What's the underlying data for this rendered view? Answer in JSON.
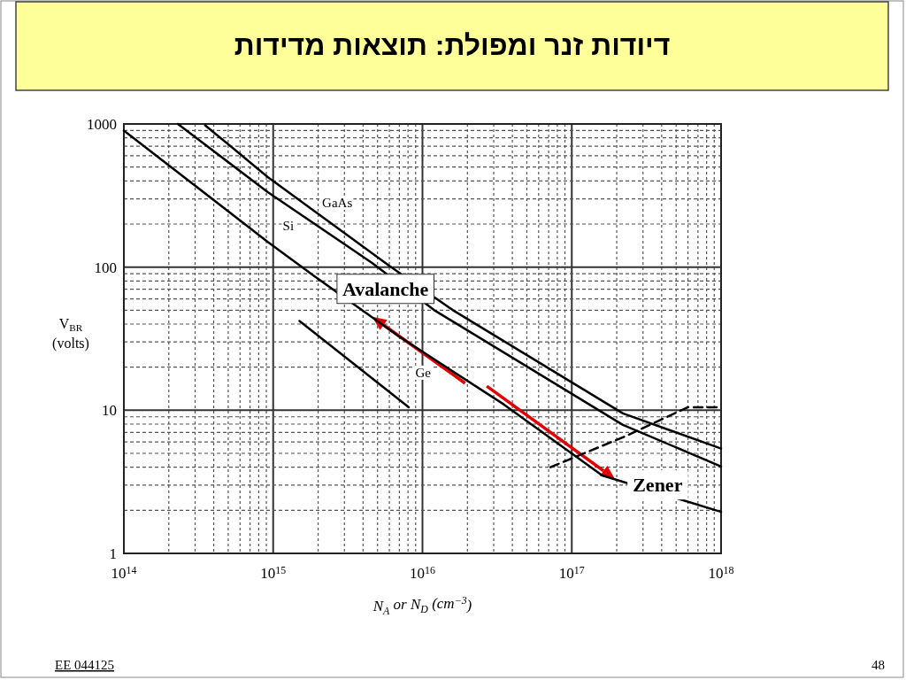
{
  "chart_data": {
    "type": "line",
    "title": "דיודות זנר ומפולת: תוצאות מדידות",
    "xlabel": "N$_{A}$ or N$_{D}$ (cm$^{−3}$)",
    "ylabel": "V$_{BR}$ (volts)",
    "log": "xy",
    "xlim": [
      100000000000000.0,
      1e+18
    ],
    "ylim": [
      1,
      1000
    ],
    "xticks": [
      {
        "value": 100000000000000.0,
        "label": "10$^{14}$"
      },
      {
        "value": 1000000000000000.0,
        "label": "10$^{15}$"
      },
      {
        "value": 1e+16,
        "label": "10$^{16}$"
      },
      {
        "value": 1e+17,
        "label": "10$^{17}$"
      },
      {
        "value": 1e+18,
        "label": "10$^{18}$"
      }
    ],
    "yticks": [
      1,
      10,
      100,
      1000
    ],
    "grid": true,
    "series": [
      {
        "name": "GaAs",
        "color": "#000000",
        "x": [
          350000000000000.0,
          920000000000000.0,
          6000000000000000.0,
          1.6e+16,
          2.2e+17,
          1e+18
        ],
        "values": [
          980,
          426,
          102,
          50,
          9.5,
          5.4
        ]
      },
      {
        "name": "Si",
        "color": "#000000",
        "x": [
          230000000000000.0,
          920000000000000.0,
          4600000000000000.0,
          1.2e+16,
          2.2e+17,
          1e+18
        ],
        "values": [
          1000,
          334,
          107,
          50,
          7.9,
          4.05
        ]
      },
      {
        "name": "Ge",
        "color": "#000000",
        "x": [
          100000000000000.0,
          920000000000000.0,
          1900000000000000.0,
          6900000000000000.0,
          3.5e+16,
          1.6e+17,
          1e+18
        ],
        "values": [
          900,
          150,
          86,
          33,
          11,
          3.5,
          1.95
        ]
      },
      {
        "color": "#000000",
        "x": [
          1500000000000000.0,
          8100000000000000.0
        ],
        "values": [
          42,
          10.5
        ]
      },
      {
        "color": "#000000",
        "line_style": "dashed",
        "x": [
          7.2e+16,
          2.3e+17,
          6e+17,
          1e+18
        ],
        "values": [
          4.0,
          6.6,
          10.5,
          10.5
        ]
      }
    ],
    "annotations": [
      {
        "text": "Avalanche",
        "x": 4600000000000000.0,
        "y": 45
      },
      {
        "text": "Zener",
        "x": 1.95e+17,
        "y": 3.3
      },
      "EE 044125",
      "48"
    ]
  }
}
